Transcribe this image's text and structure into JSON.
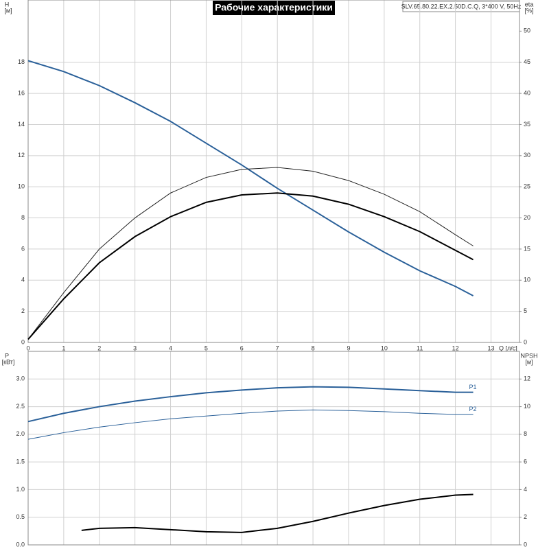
{
  "chart_data": [
    {
      "type": "line",
      "title": "Рабочие характеристики",
      "subtitle": "SLV.65.80.22.EX.2.50D.C.Q, 3*400 V, 50Hz",
      "x_label": "Q [л/с]",
      "y_label": "H",
      "y_unit": "[м]",
      "y2_label": "eta",
      "y2_unit": "[%]",
      "xlim": [
        0,
        13.8
      ],
      "xticks": [
        0,
        1,
        2,
        3,
        4,
        5,
        6,
        7,
        8,
        9,
        10,
        11,
        12,
        13
      ],
      "xtick_labels": true,
      "ylim": [
        0,
        22
      ],
      "yticks": [
        0,
        2,
        4,
        6,
        8,
        10,
        12,
        14,
        16,
        18
      ],
      "y2lim": [
        0,
        55
      ],
      "y2ticks": [
        0,
        5,
        10,
        15,
        20,
        25,
        30,
        35,
        40,
        45,
        50
      ],
      "grid": true,
      "series": [
        {
          "color": "#2a6099",
          "linewidth": 2,
          "x": [
            0,
            1,
            2,
            3,
            4,
            5,
            6,
            7,
            8,
            9,
            10,
            11,
            12,
            12.5
          ],
          "values": [
            18.1,
            17.4,
            16.5,
            15.4,
            14.2,
            12.8,
            11.4,
            9.9,
            8.5,
            7.1,
            5.8,
            4.6,
            3.6,
            3.0
          ]
        },
        {
          "color": "#222222",
          "linewidth": 1,
          "axis": "y2",
          "x": [
            0,
            1,
            2,
            3,
            4,
            5,
            6,
            7,
            8,
            9,
            10,
            11,
            12,
            12.5
          ],
          "values": [
            0.5,
            8,
            15,
            20,
            24,
            26.5,
            27.8,
            28.1,
            27.5,
            26,
            23.8,
            21,
            17.3,
            15.5
          ]
        },
        {
          "color": "#000000",
          "linewidth": 2,
          "axis": "y2",
          "x": [
            0,
            1,
            2,
            3,
            4,
            5,
            6,
            7,
            8,
            9,
            10,
            11,
            12,
            12.5
          ],
          "values": [
            0.5,
            7,
            12.8,
            17,
            20.2,
            22.5,
            23.7,
            24,
            23.5,
            22.2,
            20.2,
            17.8,
            14.8,
            13.3
          ]
        }
      ]
    },
    {
      "type": "line",
      "y_label": "P",
      "y_unit": "[кВт]",
      "y2_label": "NPSH",
      "y2_unit": "[м]",
      "xlim": [
        0,
        13.8
      ],
      "xticks": [
        0,
        1,
        2,
        3,
        4,
        5,
        6,
        7,
        8,
        9,
        10,
        11,
        12,
        13
      ],
      "xtick_labels": false,
      "ylim": [
        0,
        3.5
      ],
      "yticks": [
        {
          "value": 0,
          "label": "0.0"
        },
        0.5,
        {
          "value": 1,
          "label": "1.0"
        },
        1.5,
        {
          "value": 2,
          "label": "2.0"
        },
        2.5,
        {
          "value": 3,
          "label": "3.0"
        }
      ],
      "y2lim": [
        0,
        14
      ],
      "y2ticks": [
        0,
        2,
        4,
        6,
        8,
        10,
        12
      ],
      "grid": true,
      "series": [
        {
          "name": "P1",
          "color": "#2a6099",
          "linewidth": 2,
          "x": [
            0,
            1,
            2,
            3,
            4,
            5,
            6,
            7,
            8,
            9,
            10,
            11,
            12,
            12.5
          ],
          "values": [
            2.23,
            2.38,
            2.5,
            2.6,
            2.68,
            2.75,
            2.8,
            2.84,
            2.86,
            2.85,
            2.82,
            2.79,
            2.76,
            2.76
          ]
        },
        {
          "name": "P2",
          "color": "#2a6099",
          "linewidth": 1,
          "x": [
            0,
            1,
            2,
            3,
            4,
            5,
            6,
            7,
            8,
            9,
            10,
            11,
            12,
            12.5
          ],
          "values": [
            1.91,
            2.03,
            2.13,
            2.21,
            2.28,
            2.33,
            2.38,
            2.42,
            2.44,
            2.43,
            2.41,
            2.38,
            2.36,
            2.36
          ]
        },
        {
          "color": "#000000",
          "linewidth": 2,
          "axis": "y2",
          "x": [
            1.5,
            2,
            3,
            4,
            5,
            6,
            7,
            8,
            9,
            10,
            11,
            12,
            12.5
          ],
          "values": [
            1.05,
            1.2,
            1.25,
            1.1,
            0.95,
            0.9,
            1.2,
            1.7,
            2.3,
            2.85,
            3.3,
            3.6,
            3.65
          ]
        }
      ]
    }
  ]
}
